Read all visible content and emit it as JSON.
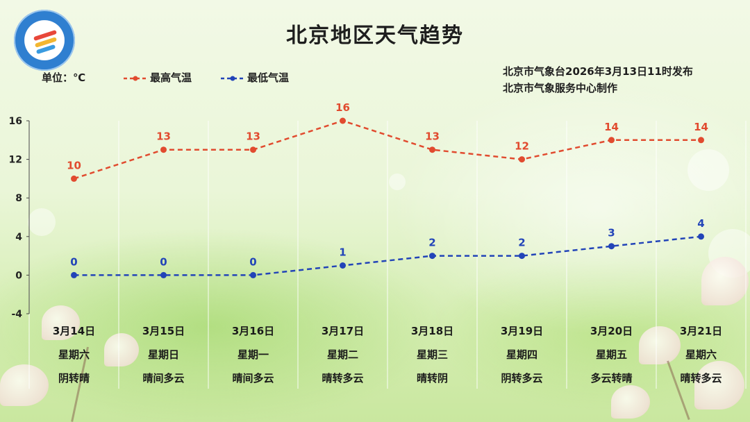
{
  "title": "北京地区天气趋势",
  "unit_label": "单位：℃",
  "legend": {
    "high": "最高气温",
    "low": "最低气温",
    "high_color": "#e14b2f",
    "low_color": "#2244b8"
  },
  "publisher": {
    "line1": "北京市气象台2026年3月13日11时发布",
    "line2": "北京市气象服务中心制作"
  },
  "logo_icon": "beijing-meteorological-service-logo",
  "days": [
    {
      "date": "3月14日",
      "weekday": "星期六",
      "weather": "阴转晴"
    },
    {
      "date": "3月15日",
      "weekday": "星期日",
      "weather": "晴间多云"
    },
    {
      "date": "3月16日",
      "weekday": "星期一",
      "weather": "晴间多云"
    },
    {
      "date": "3月17日",
      "weekday": "星期二",
      "weather": "晴转多云"
    },
    {
      "date": "3月18日",
      "weekday": "星期三",
      "weather": "晴转阴"
    },
    {
      "date": "3月19日",
      "weekday": "星期四",
      "weather": "阴转多云"
    },
    {
      "date": "3月20日",
      "weekday": "星期五",
      "weather": "多云转晴"
    },
    {
      "date": "3月21日",
      "weekday": "星期六",
      "weather": "晴转多云"
    }
  ],
  "chart_data": {
    "type": "line",
    "categories": [
      "3月14日",
      "3月15日",
      "3月16日",
      "3月17日",
      "3月18日",
      "3月19日",
      "3月20日",
      "3月21日"
    ],
    "series": [
      {
        "name": "最高气温",
        "values": [
          10,
          13,
          13,
          16,
          13,
          12,
          14,
          14
        ],
        "color": "#e14b2f",
        "style": "dashed"
      },
      {
        "name": "最低气温",
        "values": [
          0,
          0,
          0,
          1,
          2,
          2,
          3,
          4
        ],
        "color": "#2244b8",
        "style": "dashed"
      }
    ],
    "yticks": [
      16,
      12,
      8,
      4,
      0,
      -4
    ],
    "ylim": [
      -4,
      16
    ],
    "ylabel": "单位：℃",
    "grid": "vertical",
    "legend_position": "top-left"
  }
}
